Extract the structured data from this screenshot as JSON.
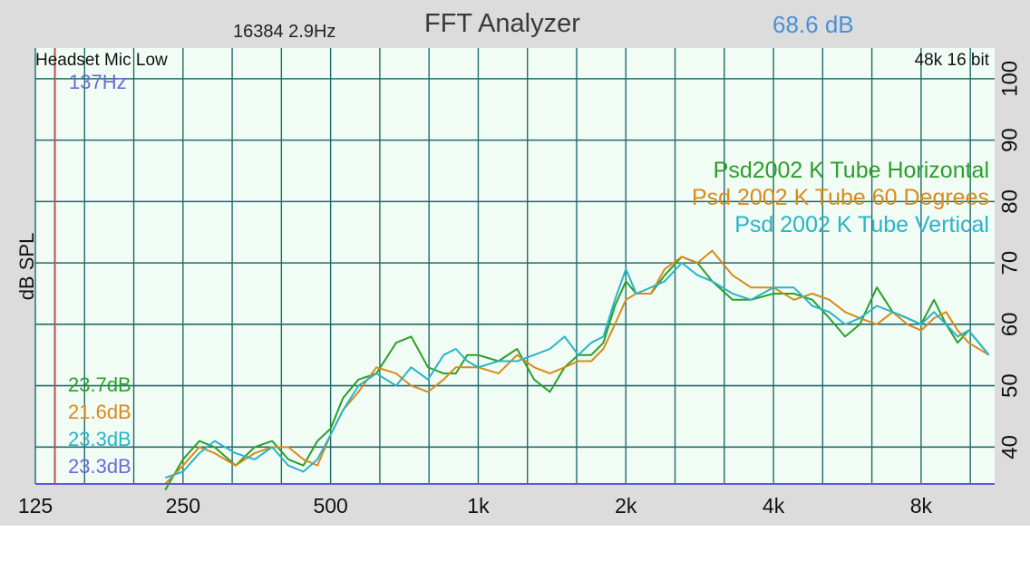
{
  "header": {
    "title": "FFT Analyzer",
    "fft_info": "16384  2.9Hz",
    "level": "68.6 dB"
  },
  "chart_data": {
    "type": "line",
    "title": "FFT Analyzer",
    "ylabel": "dB SPL",
    "xlabel": "",
    "xscale": "log",
    "xlim": [
      125,
      11300
    ],
    "ylim": [
      34,
      105
    ],
    "x_ticks": [
      125,
      250,
      500,
      1000,
      2000,
      4000,
      8000
    ],
    "x_tick_labels": [
      "125",
      "250",
      "500",
      "1k",
      "2k",
      "4k",
      "8k"
    ],
    "y_ticks": [
      40,
      50,
      60,
      70,
      80,
      90,
      100
    ],
    "y_tick_labels": [
      "40",
      "50",
      "60",
      "70",
      "80",
      "90",
      "100"
    ],
    "grid": true,
    "legend_position": "right",
    "input_label": "Headset Mic Low",
    "format_label": "48k 16 bit",
    "cursor": {
      "frequency": 137,
      "label": "137Hz",
      "color": "#c05050"
    },
    "noise_floor_labels": [
      {
        "text": "23.7dB",
        "color": "#2aa02a"
      },
      {
        "text": "21.6dB",
        "color": "#d98a1a"
      },
      {
        "text": "23.3dB",
        "color": "#2ab4c8"
      },
      {
        "text": "23.3dB",
        "color": "#6a6ad8"
      }
    ],
    "series": [
      {
        "name": "Psd2002 K Tube Horizontal",
        "color": "#2aa02a",
        "x": [
          230,
          250,
          270,
          290,
          320,
          350,
          380,
          410,
          440,
          470,
          500,
          530,
          570,
          620,
          680,
          730,
          790,
          850,
          900,
          950,
          1000,
          1100,
          1200,
          1300,
          1400,
          1500,
          1600,
          1700,
          1800,
          1900,
          2000,
          2100,
          2250,
          2400,
          2600,
          2800,
          3000,
          3300,
          3600,
          4000,
          4400,
          4800,
          5200,
          5600,
          6000,
          6500,
          7000,
          7500,
          8000,
          8500,
          9000,
          9500,
          10000,
          11000
        ],
        "y": [
          33,
          38,
          41,
          40,
          37,
          40,
          41,
          38,
          37,
          41,
          43,
          48,
          51,
          52,
          57,
          58,
          53,
          52,
          52,
          55,
          55,
          54,
          56,
          51,
          49,
          53,
          55,
          55,
          57,
          63,
          67,
          65,
          65,
          68,
          71,
          70,
          67,
          64,
          64,
          65,
          65,
          64,
          61,
          58,
          60,
          66,
          62,
          61,
          60,
          64,
          60,
          57,
          59,
          55
        ]
      },
      {
        "name": "Psd 2002 K Tube 60 Degrees",
        "color": "#d98a1a",
        "x": [
          230,
          250,
          270,
          290,
          320,
          350,
          380,
          410,
          440,
          470,
          500,
          530,
          570,
          620,
          680,
          730,
          790,
          850,
          900,
          950,
          1000,
          1100,
          1200,
          1300,
          1400,
          1500,
          1600,
          1700,
          1800,
          1900,
          2000,
          2100,
          2250,
          2400,
          2600,
          2800,
          3000,
          3300,
          3600,
          4000,
          4400,
          4800,
          5200,
          5600,
          6000,
          6500,
          7000,
          7500,
          8000,
          8500,
          9000,
          9500,
          10000,
          11000
        ],
        "y": [
          34,
          37,
          40,
          39,
          37,
          39,
          40,
          40,
          38,
          37,
          42,
          46,
          49,
          53,
          52,
          50,
          49,
          51,
          53,
          53,
          53,
          52,
          55,
          53,
          52,
          53,
          54,
          54,
          56,
          60,
          64,
          65,
          65,
          69,
          71,
          70,
          72,
          68,
          66,
          66,
          64,
          65,
          64,
          62,
          61,
          60,
          62,
          60,
          59,
          61,
          62,
          59,
          57,
          55
        ]
      },
      {
        "name": "Psd 2002 K Tube Vertical",
        "color": "#2ab4c8",
        "x": [
          230,
          250,
          270,
          290,
          320,
          350,
          380,
          410,
          440,
          470,
          500,
          530,
          570,
          620,
          680,
          730,
          790,
          850,
          900,
          950,
          1000,
          1100,
          1200,
          1300,
          1400,
          1500,
          1600,
          1700,
          1800,
          1900,
          2000,
          2100,
          2250,
          2400,
          2600,
          2800,
          3000,
          3300,
          3600,
          4000,
          4400,
          4800,
          5200,
          5600,
          6000,
          6500,
          7000,
          7500,
          8000,
          8500,
          9000,
          9500,
          10000,
          11000
        ],
        "y": [
          35,
          36,
          39,
          41,
          39,
          38,
          40,
          37,
          36,
          38,
          42,
          46,
          50,
          52,
          50,
          53,
          51,
          55,
          56,
          54,
          53,
          54,
          54,
          55,
          56,
          58,
          55,
          57,
          58,
          64,
          69,
          65,
          66,
          67,
          70,
          68,
          67,
          65,
          64,
          66,
          66,
          63,
          62,
          60,
          61,
          63,
          62,
          61,
          60,
          62,
          60,
          58,
          59,
          55
        ]
      }
    ]
  }
}
